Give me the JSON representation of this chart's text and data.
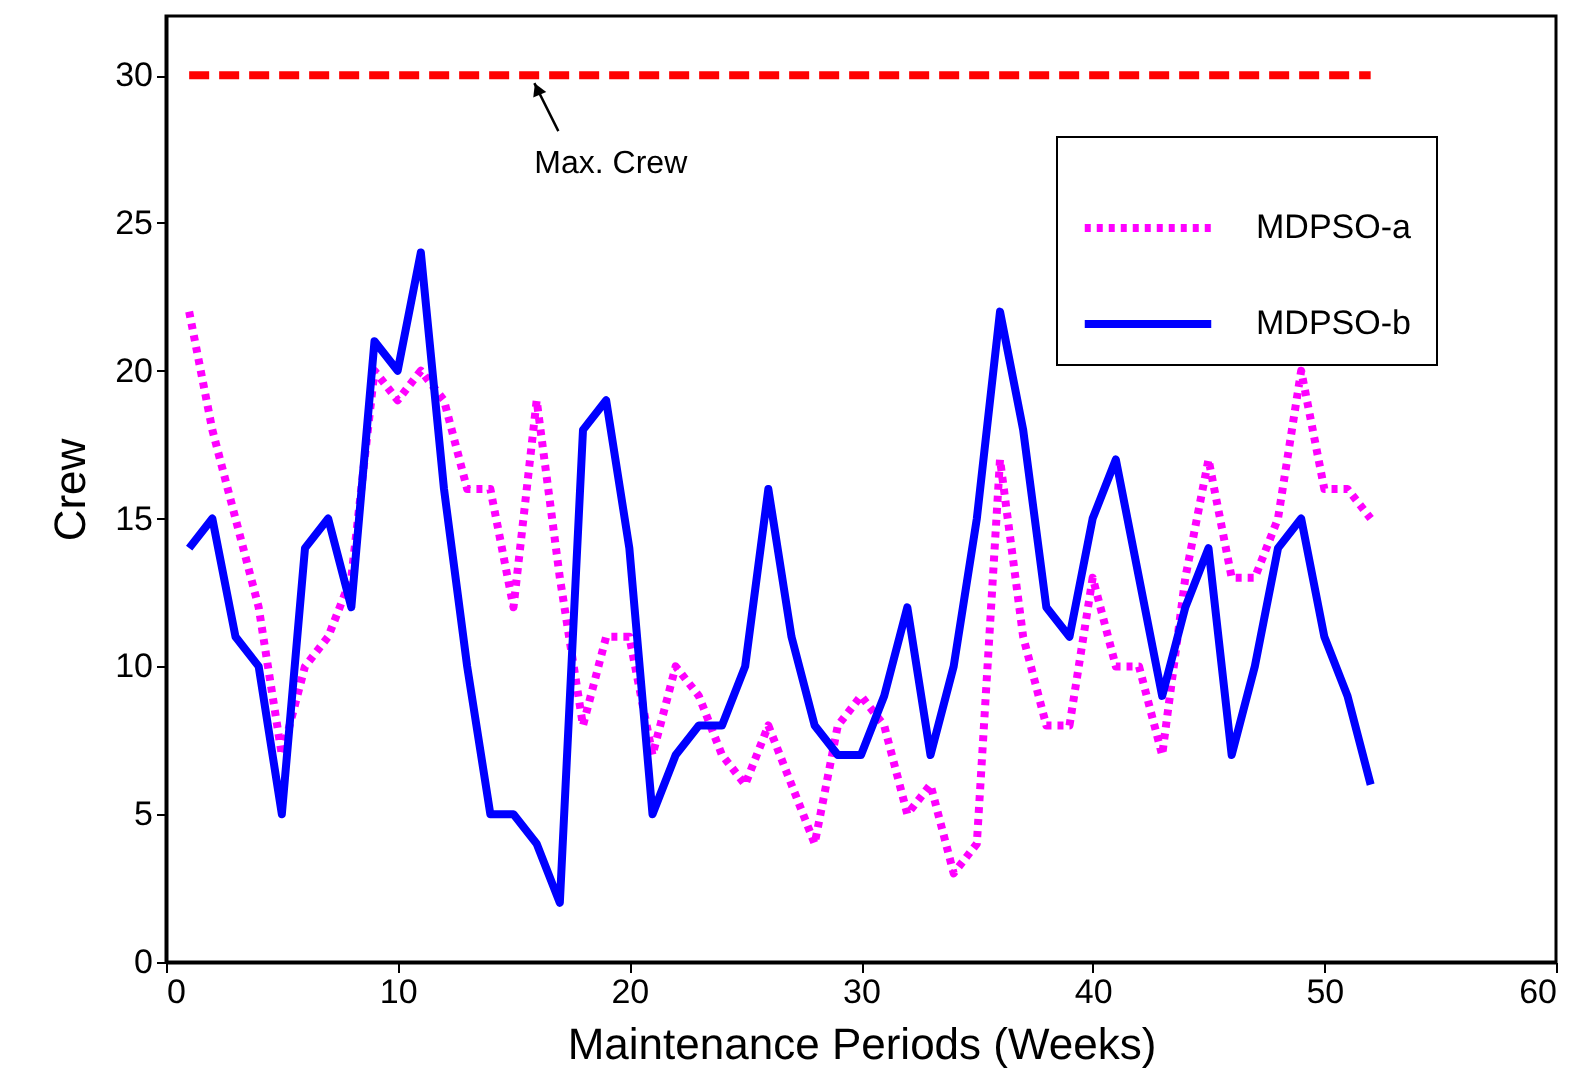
{
  "chart_data": {
    "type": "line",
    "xlabel": "Maintenance Periods (Weeks)",
    "ylabel": "Crew",
    "x": [
      1,
      2,
      3,
      4,
      5,
      6,
      7,
      8,
      9,
      10,
      11,
      12,
      13,
      14,
      15,
      16,
      17,
      18,
      19,
      20,
      21,
      22,
      23,
      24,
      25,
      26,
      27,
      28,
      29,
      30,
      31,
      32,
      33,
      34,
      35,
      36,
      37,
      38,
      39,
      40,
      41,
      42,
      43,
      44,
      45,
      46,
      47,
      48,
      49,
      50,
      51,
      52
    ],
    "series": [
      {
        "name": "MDPSO-a",
        "color": "#ff00ff",
        "line_style": "dotted",
        "values": [
          22,
          18,
          15,
          12,
          7,
          10,
          11,
          13,
          20,
          19,
          20,
          19,
          16,
          16,
          12,
          19,
          13,
          8,
          11,
          11,
          7,
          10,
          9,
          7,
          6,
          8,
          6,
          4,
          8,
          9,
          8,
          5,
          6,
          3,
          4,
          17,
          11,
          8,
          8,
          13,
          10,
          10,
          7,
          13,
          17,
          13,
          13,
          15,
          20,
          16,
          16,
          15
        ]
      },
      {
        "name": "MDPSO-b",
        "color": "#0000ff",
        "line_style": "solid",
        "values": [
          14,
          15,
          11,
          10,
          5,
          14,
          15,
          12,
          21,
          20,
          24,
          16,
          10,
          5,
          5,
          4,
          2,
          18,
          19,
          14,
          5,
          7,
          8,
          8,
          10,
          16,
          11,
          8,
          7,
          7,
          9,
          12,
          7,
          10,
          15,
          22,
          18,
          12,
          11,
          15,
          17,
          13,
          9,
          12,
          14,
          7,
          10,
          14,
          15,
          11,
          9,
          6
        ]
      }
    ],
    "ref_lines": [
      {
        "axis": "y",
        "value": 30,
        "label": "Max. Crew",
        "color": "#ff0000",
        "line_style": "dashed"
      }
    ],
    "xlim": [
      0,
      60
    ],
    "xticks": [
      0,
      10,
      20,
      30,
      40,
      50,
      60
    ],
    "ylim": [
      0,
      32
    ],
    "yticks": [
      0,
      5,
      10,
      15,
      20,
      25,
      30
    ],
    "grid": false,
    "legend": "top right"
  }
}
